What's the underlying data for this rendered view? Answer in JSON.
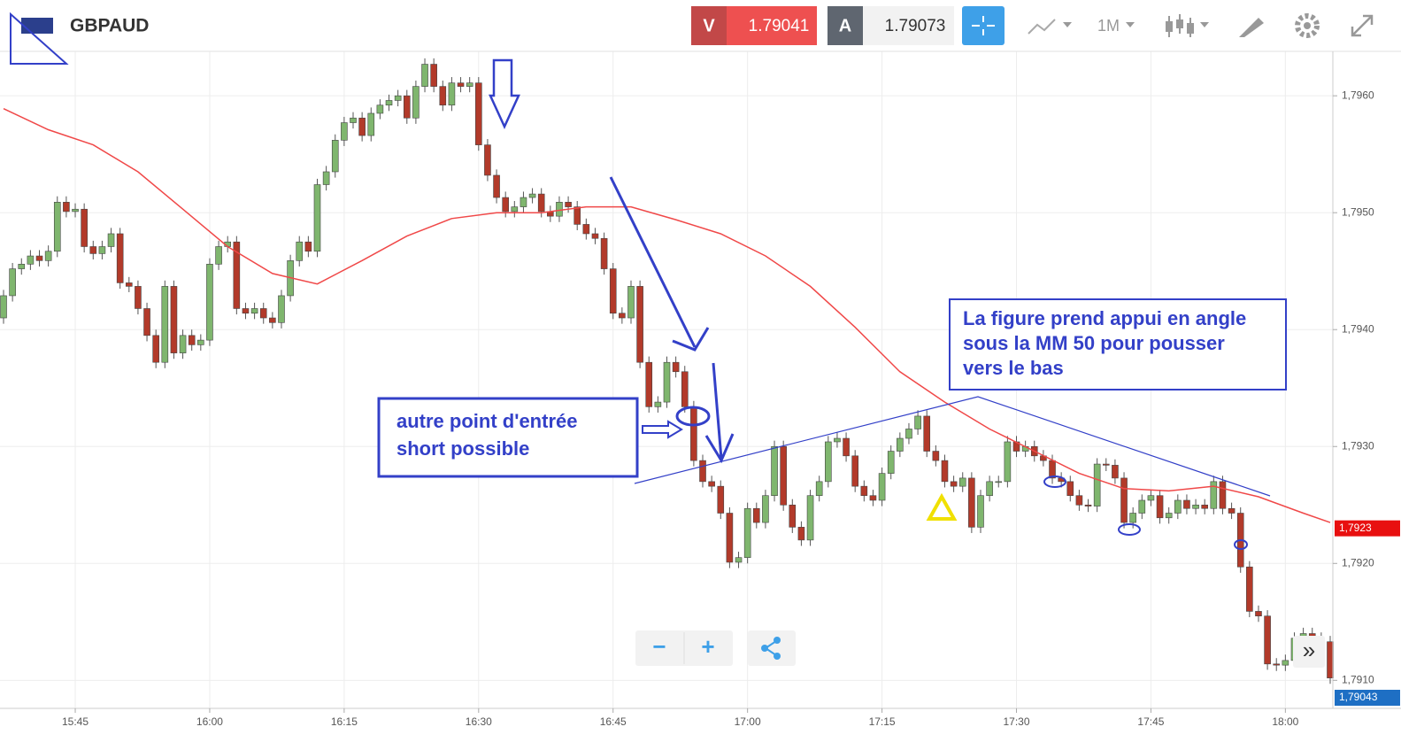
{
  "header": {
    "symbol": "GBPAUD",
    "sell_label": "V",
    "sell_price": "1.79041",
    "buy_label": "A",
    "buy_price": "1.79073",
    "timeframe": "1M"
  },
  "chart_data": {
    "type": "candlestick",
    "x": [
      "15:37",
      "15:38",
      "15:39",
      "15:40",
      "15:41",
      "15:42",
      "15:43",
      "15:44",
      "15:45",
      "15:46",
      "15:47",
      "15:48",
      "15:49",
      "15:50",
      "15:51",
      "15:52",
      "15:53",
      "15:54",
      "15:55",
      "15:56",
      "15:57",
      "15:58",
      "15:59",
      "16:00",
      "16:01",
      "16:02",
      "16:03",
      "16:04",
      "16:05",
      "16:06",
      "16:07",
      "16:08",
      "16:09",
      "16:10",
      "16:11",
      "16:12",
      "16:13",
      "16:14",
      "16:15",
      "16:16",
      "16:17",
      "16:18",
      "16:19",
      "16:20",
      "16:21",
      "16:22",
      "16:23",
      "16:24",
      "16:25",
      "16:26",
      "16:27",
      "16:28",
      "16:29",
      "16:30",
      "16:31",
      "16:32",
      "16:33",
      "16:34",
      "16:35",
      "16:36",
      "16:37",
      "16:38",
      "16:39",
      "16:40",
      "16:41",
      "16:42",
      "16:43",
      "16:44",
      "16:45",
      "16:46",
      "16:47",
      "16:48",
      "16:49",
      "16:50",
      "16:51",
      "16:52",
      "16:53",
      "16:54",
      "16:55",
      "16:56",
      "16:57",
      "16:58",
      "16:59",
      "17:00",
      "17:01",
      "17:02",
      "17:03",
      "17:04",
      "17:05",
      "17:06",
      "17:07",
      "17:08",
      "17:09",
      "17:10",
      "17:11",
      "17:12",
      "17:13",
      "17:14",
      "17:15",
      "17:16",
      "17:17",
      "17:18",
      "17:19",
      "17:20",
      "17:21",
      "17:22",
      "17:23",
      "17:24",
      "17:25",
      "17:26",
      "17:27",
      "17:28",
      "17:29",
      "17:30",
      "17:31",
      "17:32",
      "17:33",
      "17:34",
      "17:35",
      "17:36",
      "17:37",
      "17:38",
      "17:39",
      "17:40",
      "17:41",
      "17:42",
      "17:43",
      "17:44",
      "17:45",
      "17:46",
      "17:47",
      "17:48",
      "17:49",
      "17:50",
      "17:51",
      "17:52",
      "17:53",
      "17:54",
      "17:55",
      "17:56",
      "17:57",
      "17:58",
      "17:59",
      "18:00",
      "18:01",
      "18:02",
      "18:03",
      "18:04",
      "18:05"
    ],
    "open": [
      1.7941,
      1.79429,
      1.79452,
      1.79456,
      1.79463,
      1.79459,
      1.79467,
      1.79509,
      1.79501,
      1.79503,
      1.79471,
      1.79465,
      1.79471,
      1.79482,
      1.7944,
      1.79437,
      1.79418,
      1.79395,
      1.79372,
      1.79437,
      1.7938,
      1.79395,
      1.79387,
      1.79391,
      1.79456,
      1.79471,
      1.79475,
      1.79418,
      1.79414,
      1.79418,
      1.7941,
      1.79406,
      1.79429,
      1.79459,
      1.79475,
      1.79467,
      1.79524,
      1.79535,
      1.79562,
      1.79577,
      1.79581,
      1.79566,
      1.79585,
      1.79592,
      1.79596,
      1.796,
      1.79581,
      1.79608,
      1.79627,
      1.79608,
      1.79592,
      1.79611,
      1.79608,
      1.79611,
      1.79558,
      1.79532,
      1.79513,
      1.79501,
      1.79505,
      1.79513,
      1.79516,
      1.79501,
      1.79497,
      1.79509,
      1.79505,
      1.7949,
      1.79482,
      1.79478,
      1.79452,
      1.79414,
      1.7941,
      1.79437,
      1.79372,
      1.79334,
      1.79338,
      1.79372,
      1.79364,
      1.79334,
      1.79288,
      1.7927,
      1.79266,
      1.79243,
      1.79201,
      1.79205,
      1.79247,
      1.79235,
      1.79258,
      1.793,
      1.7925,
      1.79231,
      1.7922,
      1.79258,
      1.7927,
      1.79304,
      1.79307,
      1.79292,
      1.79266,
      1.79258,
      1.79254,
      1.79277,
      1.79296,
      1.79307,
      1.79315,
      1.79326,
      1.79296,
      1.79288,
      1.7927,
      1.79266,
      1.79273,
      1.79231,
      1.79258,
      1.7927,
      1.7927,
      1.79304,
      1.79296,
      1.793,
      1.79292,
      1.79288,
      1.79273,
      1.7927,
      1.79258,
      1.7925,
      1.79249,
      1.79285,
      1.79284,
      1.79273,
      1.79235,
      1.79243,
      1.79254,
      1.79258,
      1.79239,
      1.79243,
      1.79254,
      1.79247,
      1.7925,
      1.79247,
      1.7927,
      1.79247,
      1.79243,
      1.79197,
      1.79159,
      1.79155,
      1.79114,
      1.79113,
      1.79117,
      1.79136,
      1.7914,
      1.79136,
      1.79133
    ],
    "high": [
      1.79434,
      1.79457,
      1.79461,
      1.79468,
      1.79468,
      1.79472,
      1.79514,
      1.79514,
      1.79508,
      1.79508,
      1.79476,
      1.79476,
      1.79487,
      1.79487,
      1.79445,
      1.79442,
      1.79423,
      1.794,
      1.79442,
      1.79442,
      1.794,
      1.794,
      1.79396,
      1.79461,
      1.79476,
      1.7948,
      1.7948,
      1.79423,
      1.79423,
      1.79423,
      1.79415,
      1.79434,
      1.79464,
      1.7948,
      1.7948,
      1.79529,
      1.7954,
      1.79567,
      1.79582,
      1.79586,
      1.79586,
      1.7959,
      1.79597,
      1.79601,
      1.79605,
      1.79605,
      1.79613,
      1.79632,
      1.79632,
      1.79613,
      1.79616,
      1.79616,
      1.79616,
      1.79616,
      1.79563,
      1.79537,
      1.79518,
      1.7951,
      1.79518,
      1.79521,
      1.79521,
      1.79506,
      1.79514,
      1.79514,
      1.7951,
      1.79495,
      1.79487,
      1.79483,
      1.79457,
      1.79419,
      1.79442,
      1.79442,
      1.79377,
      1.79343,
      1.79377,
      1.79377,
      1.79369,
      1.79339,
      1.79293,
      1.79275,
      1.79271,
      1.79248,
      1.7921,
      1.79252,
      1.79252,
      1.79263,
      1.79305,
      1.79305,
      1.79255,
      1.79236,
      1.79263,
      1.79275,
      1.79309,
      1.79312,
      1.79312,
      1.79297,
      1.79271,
      1.79263,
      1.79282,
      1.79301,
      1.79312,
      1.7932,
      1.79331,
      1.79331,
      1.79301,
      1.79293,
      1.79275,
      1.79278,
      1.79278,
      1.79263,
      1.79275,
      1.79275,
      1.79309,
      1.79309,
      1.79305,
      1.79305,
      1.79297,
      1.79293,
      1.79278,
      1.79275,
      1.79263,
      1.79255,
      1.7929,
      1.7929,
      1.79289,
      1.79278,
      1.79248,
      1.79259,
      1.79263,
      1.79263,
      1.79248,
      1.79259,
      1.79259,
      1.79255,
      1.79255,
      1.79275,
      1.79275,
      1.79252,
      1.79248,
      1.79202,
      1.79164,
      1.7916,
      1.79119,
      1.79122,
      1.79141,
      1.79145,
      1.79145,
      1.79141,
      1.79138
    ],
    "low": [
      1.79405,
      1.79424,
      1.79447,
      1.79451,
      1.79454,
      1.79454,
      1.79462,
      1.79496,
      1.79496,
      1.79466,
      1.7946,
      1.7946,
      1.79466,
      1.79435,
      1.79432,
      1.79413,
      1.7939,
      1.79367,
      1.79367,
      1.79375,
      1.79375,
      1.79382,
      1.79382,
      1.79386,
      1.79451,
      1.79466,
      1.79413,
      1.79409,
      1.79409,
      1.79405,
      1.79401,
      1.79401,
      1.79424,
      1.79454,
      1.79462,
      1.79462,
      1.79519,
      1.7953,
      1.79557,
      1.79572,
      1.79561,
      1.79561,
      1.7958,
      1.79587,
      1.79591,
      1.79576,
      1.79576,
      1.79603,
      1.79603,
      1.79587,
      1.79587,
      1.79603,
      1.79603,
      1.79553,
      1.79527,
      1.79508,
      1.79496,
      1.79496,
      1.795,
      1.79508,
      1.79496,
      1.79492,
      1.79492,
      1.795,
      1.79485,
      1.79477,
      1.79473,
      1.79447,
      1.79409,
      1.79405,
      1.79405,
      1.79367,
      1.79329,
      1.79329,
      1.79333,
      1.79359,
      1.79329,
      1.79283,
      1.79265,
      1.79261,
      1.79238,
      1.79196,
      1.79196,
      1.792,
      1.7923,
      1.7923,
      1.79253,
      1.79245,
      1.79226,
      1.79215,
      1.79215,
      1.79253,
      1.79265,
      1.79299,
      1.79287,
      1.79261,
      1.79253,
      1.79249,
      1.79249,
      1.79272,
      1.79291,
      1.79302,
      1.7931,
      1.79291,
      1.79283,
      1.79265,
      1.79261,
      1.79261,
      1.79226,
      1.79226,
      1.79253,
      1.79265,
      1.79265,
      1.79291,
      1.79291,
      1.79287,
      1.79283,
      1.79268,
      1.79265,
      1.79253,
      1.79245,
      1.79244,
      1.79244,
      1.79279,
      1.79268,
      1.7923,
      1.7923,
      1.79238,
      1.79249,
      1.79234,
      1.79234,
      1.79238,
      1.79242,
      1.79242,
      1.79242,
      1.79242,
      1.79242,
      1.79238,
      1.79192,
      1.79154,
      1.7915,
      1.79109,
      1.79108,
      1.79108,
      1.79112,
      1.79131,
      1.79131,
      1.79128,
      1.79097
    ],
    "close": [
      1.79429,
      1.79452,
      1.79456,
      1.79463,
      1.79459,
      1.79467,
      1.79509,
      1.79501,
      1.79503,
      1.79471,
      1.79465,
      1.79471,
      1.79482,
      1.7944,
      1.79437,
      1.79418,
      1.79395,
      1.79372,
      1.79437,
      1.7938,
      1.79395,
      1.79387,
      1.79391,
      1.79456,
      1.79471,
      1.79475,
      1.79418,
      1.79414,
      1.79418,
      1.7941,
      1.79406,
      1.79429,
      1.79459,
      1.79475,
      1.79467,
      1.79524,
      1.79535,
      1.79562,
      1.79577,
      1.79581,
      1.79566,
      1.79585,
      1.79592,
      1.79596,
      1.796,
      1.79581,
      1.79608,
      1.79627,
      1.79608,
      1.79592,
      1.79611,
      1.79608,
      1.79611,
      1.79558,
      1.79532,
      1.79513,
      1.79501,
      1.79505,
      1.79513,
      1.79516,
      1.79501,
      1.79497,
      1.79509,
      1.79505,
      1.7949,
      1.79482,
      1.79478,
      1.79452,
      1.79414,
      1.7941,
      1.79437,
      1.79372,
      1.79334,
      1.79338,
      1.79372,
      1.79364,
      1.79334,
      1.79288,
      1.7927,
      1.79266,
      1.79243,
      1.79201,
      1.79205,
      1.79247,
      1.79235,
      1.79258,
      1.793,
      1.7925,
      1.79231,
      1.7922,
      1.79258,
      1.7927,
      1.79304,
      1.79307,
      1.79292,
      1.79266,
      1.79258,
      1.79254,
      1.79277,
      1.79296,
      1.79307,
      1.79315,
      1.79326,
      1.79296,
      1.79288,
      1.7927,
      1.79266,
      1.79273,
      1.79231,
      1.79258,
      1.7927,
      1.7927,
      1.79304,
      1.79296,
      1.793,
      1.79292,
      1.79288,
      1.79273,
      1.7927,
      1.79258,
      1.7925,
      1.79249,
      1.79285,
      1.79284,
      1.79273,
      1.79235,
      1.79243,
      1.79254,
      1.79258,
      1.79239,
      1.79243,
      1.79254,
      1.79247,
      1.7925,
      1.79247,
      1.7927,
      1.79247,
      1.79243,
      1.79197,
      1.79159,
      1.79155,
      1.79114,
      1.79113,
      1.79117,
      1.79136,
      1.7914,
      1.79136,
      1.79133,
      1.79102
    ],
    "up_color": "#7fb66e",
    "down_color": "#b23a2a",
    "ma": {
      "color": "#f04848",
      "x": [
        "15:37",
        "15:42",
        "15:47",
        "15:52",
        "15:57",
        "16:02",
        "16:07",
        "16:12",
        "16:17",
        "16:22",
        "16:27",
        "16:32",
        "16:37",
        "16:42",
        "16:47",
        "16:52",
        "16:57",
        "17:02",
        "17:07",
        "17:12",
        "17:17",
        "17:22",
        "17:27",
        "17:32",
        "17:37",
        "17:42",
        "17:47",
        "17:52",
        "17:57",
        "18:02",
        "18:05"
      ],
      "values": [
        1.79589,
        1.79571,
        1.79558,
        1.79535,
        1.79503,
        1.79471,
        1.79448,
        1.79439,
        1.79459,
        1.7948,
        1.79495,
        1.795,
        1.795,
        1.79505,
        1.79505,
        1.79494,
        1.79482,
        1.79463,
        1.79437,
        1.79402,
        1.79364,
        1.79338,
        1.79315,
        1.79296,
        1.79277,
        1.79264,
        1.79262,
        1.79266,
        1.79257,
        1.79243,
        1.79235
      ]
    },
    "xlim": [
      "15:37",
      "18:05"
    ],
    "xticks": [
      "15:45",
      "16:00",
      "16:15",
      "16:30",
      "16:45",
      "17:00",
      "17:15",
      "17:30",
      "17:45",
      "18:00"
    ],
    "ylim": [
      1.79076,
      1.79638
    ],
    "yticks": [
      {
        "value": 1.791,
        "label": "1,7910"
      },
      {
        "value": 1.792,
        "label": "1,7920"
      },
      {
        "value": 1.793,
        "label": "1,7930"
      },
      {
        "value": 1.794,
        "label": "1,7940"
      },
      {
        "value": 1.795,
        "label": "1,7950"
      },
      {
        "value": 1.796,
        "label": "1,7960"
      }
    ],
    "grid": true,
    "price_labels": [
      {
        "value": 1.7923,
        "label": "1,7923",
        "color": "#e81010"
      },
      {
        "value": 1.79043,
        "label": "1,79043",
        "color": "#1e6fc4"
      }
    ],
    "annotations": [
      {
        "lines": [
          "La figure prend appui en angle",
          "sous la MM 50 pour pousser",
          "vers le bas"
        ]
      },
      {
        "lines": [
          "autre point d'entrée",
          "short possible"
        ]
      }
    ]
  },
  "controls": {
    "zoom_out": "−",
    "zoom_in": "+",
    "scroll": "»"
  }
}
